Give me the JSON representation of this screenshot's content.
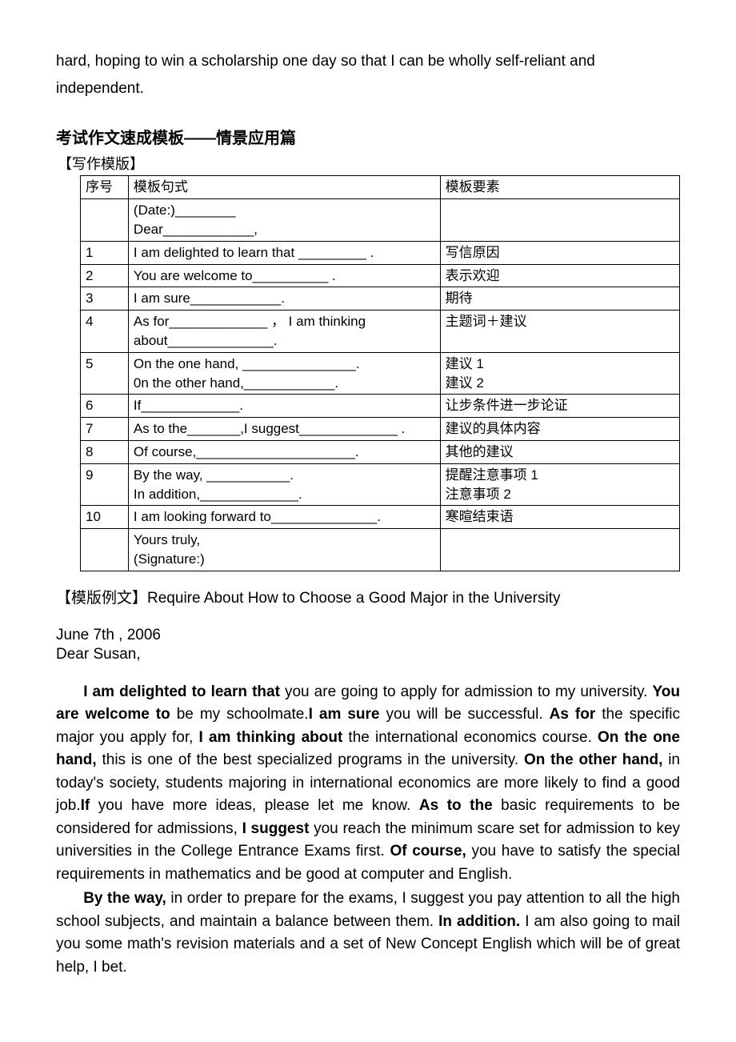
{
  "intro": "hard, hoping to win a scholarship one day so that I can be wholly self-reliant and independent.",
  "sectionTitle": "考试作文速成模板——情景应用篇",
  "subLabel": "【写作模版】",
  "table": {
    "headers": {
      "num": "序号",
      "pattern": "模板句式",
      "elem": "模板要素"
    },
    "rows": [
      {
        "num": "",
        "pattern": "(Date:)________\nDear____________,",
        "elem": ""
      },
      {
        "num": "1",
        "pattern": "I am delighted to learn that _________ .",
        "elem": "写信原因"
      },
      {
        "num": "2",
        "pattern": "You are welcome to__________ .",
        "elem": "表示欢迎"
      },
      {
        "num": "3",
        "pattern": "I am sure____________.",
        "elem": "期待"
      },
      {
        "num": "4",
        "pattern": "As for_____________ ， I am thinking about______________.",
        "elem": "主题词＋建议"
      },
      {
        "num": "5",
        "pattern": "On the one hand, _______________.\n0n the other hand,____________.",
        "elem": "建议 1\n建议 2"
      },
      {
        "num": "6",
        "pattern": "If_____________.",
        "elem": "让步条件进一步论证"
      },
      {
        "num": "7",
        "pattern": "As to the_______,I suggest_____________ .",
        "elem": "建议的具体内容"
      },
      {
        "num": "8",
        "pattern": "Of course,_____________________.",
        "elem": "其他的建议"
      },
      {
        "num": "9",
        "pattern": "By the way, ___________.\nIn addition,_____________.",
        "elem": "提醒注意事项 1\n注意事项 2"
      },
      {
        "num": "10",
        "pattern": "I am looking forward to______________.",
        "elem": "寒暄结束语"
      },
      {
        "num": "",
        "pattern": "Yours truly,\n(Signature:)\n ",
        "elem": ""
      }
    ]
  },
  "exampleLabel": "【模版例文】",
  "exampleTitle": "Require About How to Choose a Good Major in the University",
  "date": "June 7th , 2006",
  "salutation": "Dear Susan,",
  "para1": {
    "parts": [
      {
        "t": "I am delighted to learn that",
        "b": true
      },
      {
        "t": " you are going to apply for admission to my university. ",
        "b": false
      },
      {
        "t": "You are welcome to",
        "b": true
      },
      {
        "t": " be my schoolmate.",
        "b": false
      },
      {
        "t": "I am sure",
        "b": true
      },
      {
        "t": " you will be successful. ",
        "b": false
      },
      {
        "t": "As for",
        "b": true
      },
      {
        "t": " the specific major you apply for, ",
        "b": false
      },
      {
        "t": "I am thinking about",
        "b": true
      },
      {
        "t": " the international economics course. ",
        "b": false
      },
      {
        "t": "On the one hand,",
        "b": true
      },
      {
        "t": " this is one of the best specialized programs in the university. ",
        "b": false
      },
      {
        "t": "On the other hand,",
        "b": true
      },
      {
        "t": " in today's society, students majoring in international economics are more likely to find a good job.",
        "b": false
      },
      {
        "t": "If",
        "b": true
      },
      {
        "t": " you have more ideas, please let me know. ",
        "b": false
      },
      {
        "t": "As to the",
        "b": true
      },
      {
        "t": " basic requirements to be considered for admissions, ",
        "b": false
      },
      {
        "t": "I suggest",
        "b": true
      },
      {
        "t": " you reach the minimum scare set for admission to key universities in the College Entrance Exams first. ",
        "b": false
      },
      {
        "t": "Of course,",
        "b": true
      },
      {
        "t": " you have to satisfy the special requirements in mathematics and be good at computer and English.",
        "b": false
      }
    ]
  },
  "para2": {
    "parts": [
      {
        "t": "By the way,",
        "b": true
      },
      {
        "t": " in order to prepare for the exams, I suggest you pay attention to all the high school subjects, and maintain a balance between them. ",
        "b": false
      },
      {
        "t": "In addition.",
        "b": true
      },
      {
        "t": " I am also going to mail you some math's revision materials and a set of New Concept English which will be of great help, I bet.",
        "b": false
      }
    ]
  }
}
